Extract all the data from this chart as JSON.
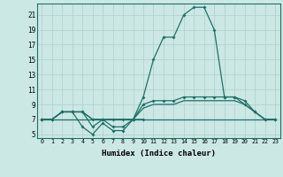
{
  "x": [
    0,
    1,
    2,
    3,
    4,
    5,
    6,
    7,
    8,
    9,
    10,
    11,
    12,
    13,
    14,
    15,
    16,
    17,
    18,
    19,
    20,
    21,
    22,
    23
  ],
  "line_main": [
    7,
    7,
    8,
    8,
    8,
    6,
    7,
    6,
    6,
    7,
    10,
    15,
    18,
    18,
    21,
    22,
    22,
    19,
    10,
    10,
    9,
    8,
    7,
    7
  ],
  "line_med": [
    7,
    7,
    8,
    8,
    8,
    7,
    7,
    7,
    7,
    7,
    9,
    9.5,
    9.5,
    9.5,
    10,
    10,
    10,
    10,
    10,
    10,
    9.5,
    8,
    7,
    7
  ],
  "line_low": [
    7,
    7,
    8,
    8,
    8,
    7,
    7,
    7,
    7,
    7,
    8.5,
    9,
    9,
    9,
    9.5,
    9.5,
    9.5,
    9.5,
    9.5,
    9.5,
    9,
    8,
    7,
    7
  ],
  "line_flat": [
    7,
    7,
    7,
    7,
    7,
    7,
    7,
    7,
    7,
    7,
    7,
    7,
    7,
    7,
    7,
    7,
    7,
    7,
    7,
    7,
    7,
    7,
    7,
    7
  ],
  "line_zigzag": [
    7,
    7,
    8,
    8,
    6,
    5,
    6.5,
    5.5,
    5.5,
    7,
    7,
    7,
    7,
    7,
    7,
    7,
    7,
    7,
    7,
    7,
    7,
    7,
    7,
    7
  ],
  "bg_color": "#cce8e4",
  "line_color": "#1e7068",
  "grid_color": "#aacfca",
  "grid_minor_color": "#b8d8d4",
  "xlabel": "Humidex (Indice chaleur)",
  "yticks": [
    5,
    7,
    9,
    11,
    13,
    15,
    17,
    19,
    21
  ],
  "ylim": [
    4.5,
    22.5
  ],
  "xlim": [
    -0.5,
    23.5
  ]
}
